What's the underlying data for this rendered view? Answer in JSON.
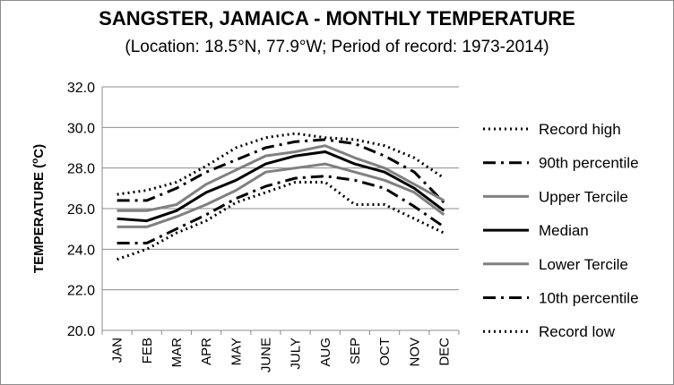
{
  "chart_data": {
    "type": "line",
    "title": "SANGSTER, JAMAICA - MONTHLY TEMPERATURE",
    "subtitle": "(Location: 18.5°N, 77.9°W; Period of record: 1973-2014)",
    "ylabel": "TEMPERATURE (ºC)",
    "ylabel_main": "TEMPERATURE (",
    "ylabel_sup": "o",
    "ylabel_end": "C)",
    "xlabel": "",
    "ylim": [
      20,
      32
    ],
    "yticks": [
      "20.0",
      "22.0",
      "24.0",
      "26.0",
      "28.0",
      "30.0",
      "32.0"
    ],
    "grid": true,
    "legend_position": "right",
    "categories": [
      "JAN",
      "FEB",
      "MAR",
      "APR",
      "MAY",
      "JUNE",
      "JULY",
      "AUG",
      "SEP",
      "OCT",
      "NOV",
      "DEC"
    ],
    "series": [
      {
        "name": "Record high",
        "style": "dotted",
        "color": "#000000",
        "values": [
          26.7,
          26.9,
          27.3,
          28.1,
          29.0,
          29.5,
          29.7,
          29.5,
          29.4,
          29.1,
          28.5,
          27.5
        ]
      },
      {
        "name": "90th percentile",
        "style": "dashdot",
        "color": "#000000",
        "values": [
          26.4,
          26.4,
          27.0,
          27.8,
          28.4,
          29.0,
          29.3,
          29.4,
          29.2,
          28.6,
          27.8,
          26.3
        ]
      },
      {
        "name": "Upper Tercile",
        "style": "solid",
        "color": "#808080",
        "values": [
          25.9,
          25.9,
          26.2,
          27.2,
          27.9,
          28.6,
          28.8,
          29.1,
          28.5,
          28.0,
          27.2,
          26.4
        ]
      },
      {
        "name": "Median",
        "style": "solid",
        "color": "#000000",
        "values": [
          25.5,
          25.4,
          25.9,
          26.8,
          27.4,
          28.2,
          28.6,
          28.8,
          28.2,
          27.8,
          27.0,
          25.9
        ]
      },
      {
        "name": "Lower Tercile",
        "style": "solid",
        "color": "#808080",
        "values": [
          25.1,
          25.1,
          25.6,
          26.2,
          26.9,
          27.8,
          28.0,
          28.2,
          27.8,
          27.4,
          26.8,
          25.7
        ]
      },
      {
        "name": "10th percentile",
        "style": "dashdot",
        "color": "#000000",
        "values": [
          24.3,
          24.3,
          25.0,
          25.7,
          26.5,
          27.1,
          27.5,
          27.6,
          27.4,
          27.0,
          26.1,
          25.1
        ]
      },
      {
        "name": "Record low",
        "style": "dotted",
        "color": "#000000",
        "values": [
          23.5,
          24.0,
          24.8,
          25.4,
          26.3,
          26.8,
          27.3,
          27.3,
          26.2,
          26.2,
          25.5,
          24.8
        ]
      }
    ]
  }
}
